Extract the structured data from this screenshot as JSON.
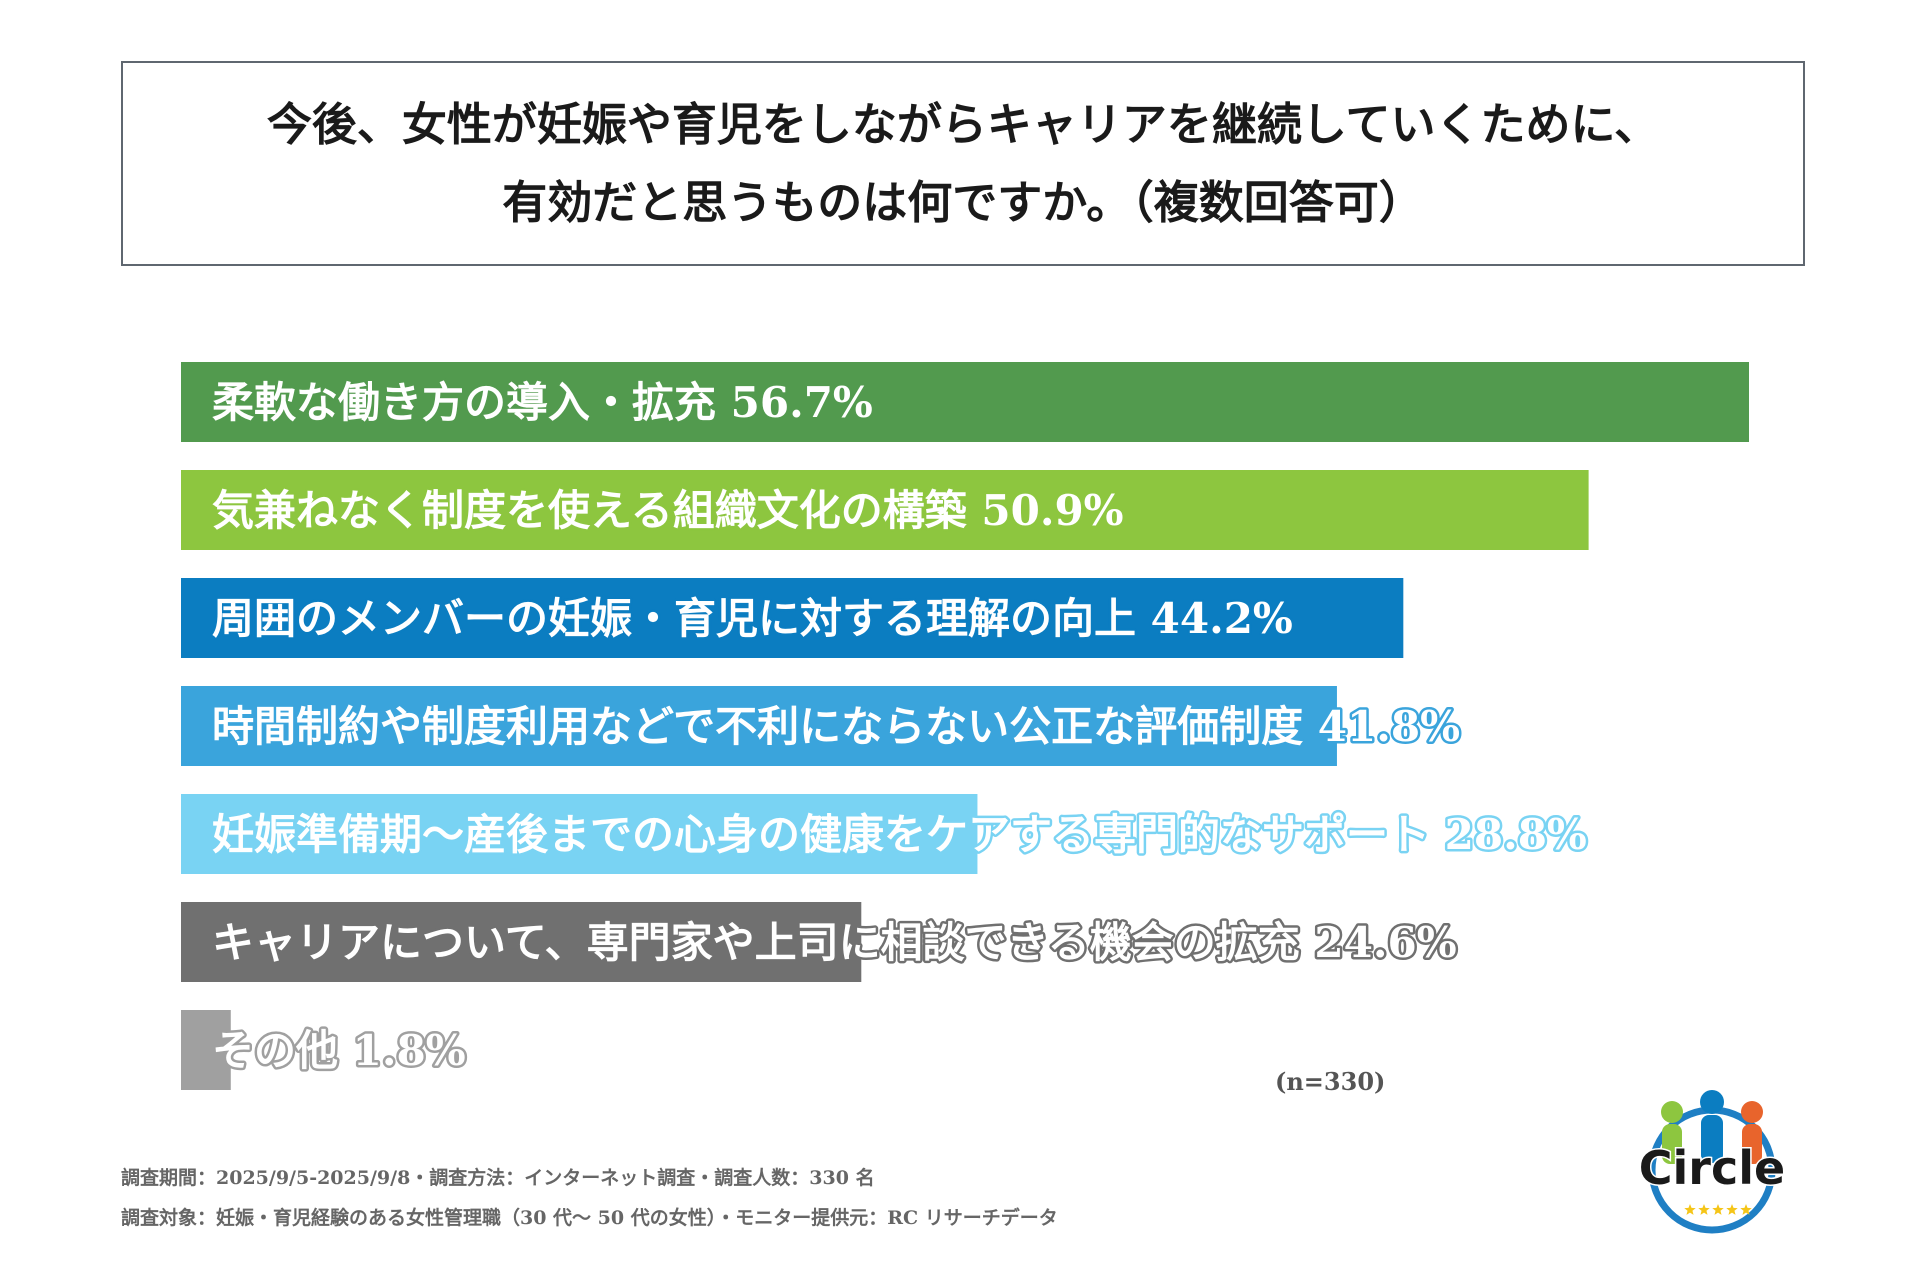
{
  "title": {
    "line1": "今後、女性が妊娠や育児をしながらキャリアを継続していくために、",
    "line2": "有効だと思うものは何ですか。（複数回答可）"
  },
  "chart_data": {
    "type": "bar",
    "orientation": "horizontal",
    "unit": "%",
    "categories": [
      "柔軟な働き方の導入・拡充",
      "気兼ねなく制度を使える組織文化の構築",
      "周囲のメンバーの妊娠・育児に対する理解の向上",
      "時間制約や制度利用などで不利にならない公正な評価制度",
      "妊娠準備期〜産後までの心身の健康をケアする専門的なサポート",
      "キャリアについて、専門家や上司に相談できる機会の拡充",
      "その他"
    ],
    "values": [
      56.7,
      50.9,
      44.2,
      41.8,
      28.8,
      24.6,
      1.8
    ],
    "value_labels": [
      "56.7%",
      "50.9%",
      "44.2%",
      "41.8%",
      "28.8%",
      "24.6%",
      "1.8%"
    ],
    "colors": [
      "#529a4e",
      "#8dc63f",
      "#0b7dc1",
      "#3aa4dc",
      "#79d3f3",
      "#707070",
      "#a0a0a0"
    ],
    "xlim": [
      0,
      56.7
    ],
    "grid": false,
    "legend": "none",
    "sample_size": "(n=330)"
  },
  "footnotes": {
    "line1": "調査期間：2025/9/5-2025/9/8・調査方法：インターネット調査・調査人数：330 名",
    "line2": "調査対象：妊娠・育児経験のある女性管理職（30 代〜 50 代の女性）・モニター提供元：RC リサーチデータ"
  },
  "logo": {
    "text": "Circle",
    "figure_colors": [
      "#8dc63f",
      "#0b7dc1",
      "#e8642c"
    ],
    "ring_color": "#1f7fc4",
    "star_color": "#f5c518"
  }
}
